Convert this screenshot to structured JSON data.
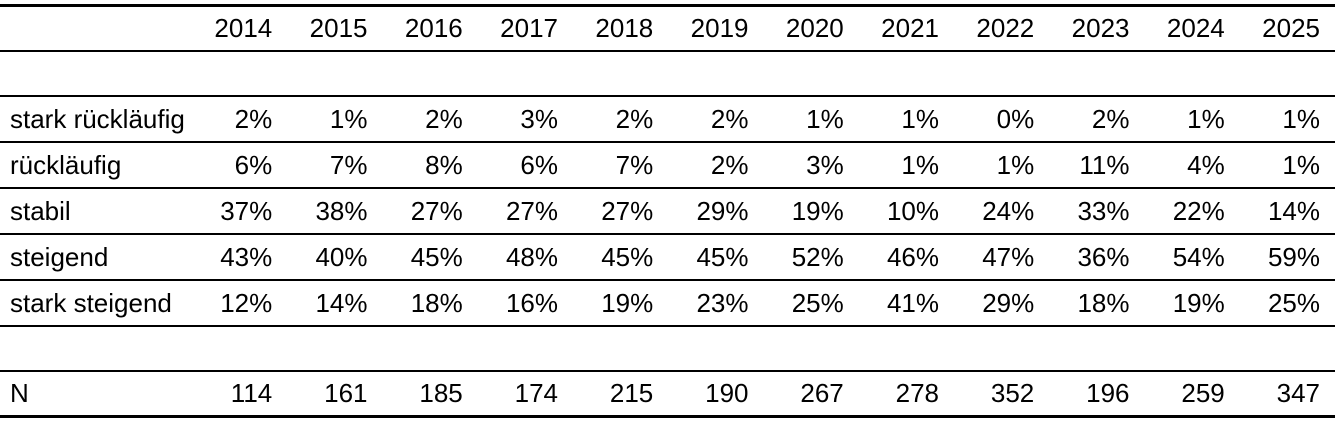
{
  "table": {
    "years": [
      "2014",
      "2015",
      "2016",
      "2017",
      "2018",
      "2019",
      "2020",
      "2021",
      "2022",
      "2023",
      "2024",
      "2025"
    ],
    "rows": [
      {
        "label": "stark rückläufig",
        "values": [
          "2%",
          "1%",
          "2%",
          "3%",
          "2%",
          "2%",
          "1%",
          "1%",
          "0%",
          "2%",
          "1%",
          "1%"
        ]
      },
      {
        "label": "rückläufig",
        "values": [
          "6%",
          "7%",
          "8%",
          "6%",
          "7%",
          "2%",
          "3%",
          "1%",
          "1%",
          "11%",
          "4%",
          "1%"
        ]
      },
      {
        "label": "stabil",
        "values": [
          "37%",
          "38%",
          "27%",
          "27%",
          "27%",
          "29%",
          "19%",
          "10%",
          "24%",
          "33%",
          "22%",
          "14%"
        ]
      },
      {
        "label": "steigend",
        "values": [
          "43%",
          "40%",
          "45%",
          "48%",
          "45%",
          "45%",
          "52%",
          "46%",
          "47%",
          "36%",
          "54%",
          "59%"
        ]
      },
      {
        "label": "stark steigend",
        "values": [
          "12%",
          "14%",
          "18%",
          "16%",
          "19%",
          "23%",
          "25%",
          "41%",
          "29%",
          "18%",
          "19%",
          "25%"
        ]
      }
    ],
    "n_row": {
      "label": "N",
      "values": [
        "114",
        "161",
        "185",
        "174",
        "215",
        "190",
        "267",
        "278",
        "352",
        "196",
        "259",
        "347"
      ]
    }
  },
  "colors": {
    "text": "#000000",
    "background": "#ffffff",
    "rule_line": "#000000"
  }
}
